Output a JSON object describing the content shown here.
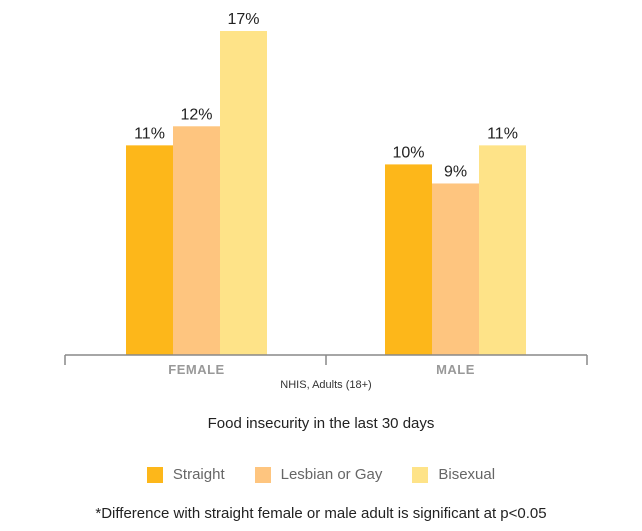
{
  "chart_data": {
    "type": "bar",
    "categories": [
      "FEMALE",
      "MALE"
    ],
    "series": [
      {
        "name": "Straight",
        "values": [
          11,
          10
        ],
        "labels": [
          "11%",
          "10%"
        ],
        "color": "#FDB71A"
      },
      {
        "name": "Lesbian or Gay",
        "values": [
          12,
          9
        ],
        "labels": [
          "12%",
          "9%"
        ],
        "color": "#FEC57F"
      },
      {
        "name": "Bisexual",
        "values": [
          17,
          11
        ],
        "labels": [
          "17%",
          "11%"
        ],
        "color": "#FEE388"
      }
    ],
    "ylim": [
      0,
      17
    ],
    "grid": false,
    "legend_position": "bottom",
    "xlabel": "NHIS, Adults (18+)",
    "subtitle": "Food insecurity in the last 30 days",
    "footnote": "*Difference with straight female or male adult is significant at p<0.05"
  }
}
